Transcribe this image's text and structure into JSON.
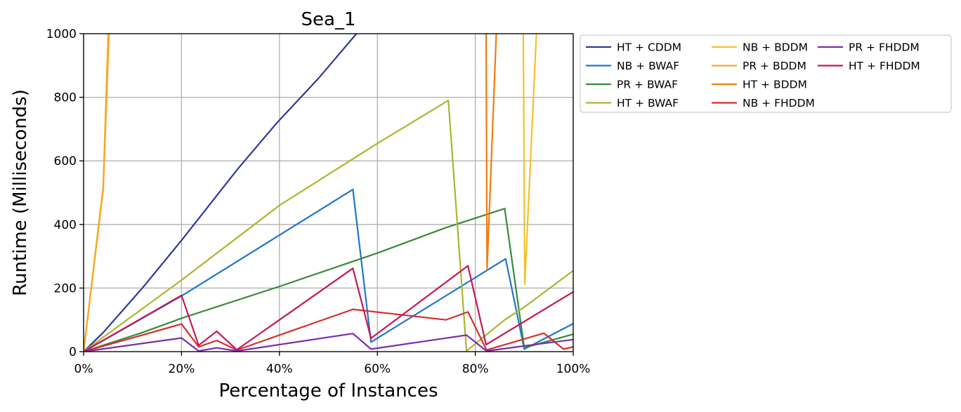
{
  "chart_data": {
    "type": "line",
    "title": "Sea_1",
    "xlabel": "Percentage of Instances",
    "ylabel": "Runtime (Milliseconds)",
    "xlim": [
      0,
      100
    ],
    "ylim": [
      0,
      1000
    ],
    "x_ticks": [
      "0%",
      "20%",
      "40%",
      "60%",
      "80%",
      "100%"
    ],
    "y_ticks": [
      "0",
      "200",
      "400",
      "600",
      "800",
      "1000"
    ],
    "grid": true,
    "legend_position": "outside-top-right",
    "legend_columns": 3,
    "series": [
      {
        "name": "HT + CDDM",
        "color": "#2b3a98",
        "points": [
          [
            0,
            0
          ],
          [
            4,
            60
          ],
          [
            8,
            130
          ],
          [
            12,
            200
          ],
          [
            20,
            350
          ],
          [
            31.5,
            575
          ],
          [
            39.5,
            720
          ],
          [
            48,
            860
          ],
          [
            56,
            1005
          ]
        ]
      },
      {
        "name": "NB + BWAF",
        "color": "#1f77c9",
        "points": [
          [
            0,
            0
          ],
          [
            20,
            175
          ],
          [
            55,
            510
          ],
          [
            58.7,
            30
          ],
          [
            86.2,
            292
          ],
          [
            90,
            8
          ],
          [
            100,
            88
          ]
        ]
      },
      {
        "name": "PR + BWAF",
        "color": "#3a8a3a",
        "points": [
          [
            0,
            0
          ],
          [
            12,
            60
          ],
          [
            20,
            105
          ],
          [
            40,
            205
          ],
          [
            60,
            310
          ],
          [
            74,
            390
          ],
          [
            78,
            410
          ],
          [
            86,
            450
          ],
          [
            90,
            12
          ],
          [
            100,
            55
          ]
        ]
      },
      {
        "name": "HT + BWAF",
        "color": "#adb52e",
        "points": [
          [
            0,
            0
          ],
          [
            20,
            225
          ],
          [
            40,
            460
          ],
          [
            60,
            655
          ],
          [
            74.5,
            790
          ],
          [
            78.2,
            2
          ],
          [
            86,
            100
          ],
          [
            90,
            140
          ],
          [
            100,
            255
          ]
        ]
      },
      {
        "name": "NB + BDDM",
        "color": "#f5c02a",
        "points": [
          [
            0,
            0
          ],
          [
            4,
            520
          ],
          [
            5,
            1005
          ],
          [
            89.8,
            1005
          ],
          [
            90.1,
            212
          ],
          [
            92.5,
            1005
          ]
        ]
      },
      {
        "name": "PR + BDDM",
        "color": "#f5a623",
        "points": [
          [
            0,
            0
          ],
          [
            4,
            510
          ],
          [
            5.2,
            1005
          ]
        ]
      },
      {
        "name": "HT + BDDM",
        "color": "#ef7d0f",
        "points": [
          [
            82.2,
            1005
          ],
          [
            82.4,
            258
          ],
          [
            84.3,
            1005
          ]
        ]
      },
      {
        "name": "NB + FHDDM",
        "color": "#d62f2f",
        "points": [
          [
            0,
            0
          ],
          [
            20,
            87
          ],
          [
            23.5,
            15
          ],
          [
            27.2,
            35
          ],
          [
            31.3,
            5
          ],
          [
            55,
            133
          ],
          [
            74,
            100
          ],
          [
            78.5,
            125
          ],
          [
            82.3,
            5
          ],
          [
            94,
            58
          ],
          [
            98,
            8
          ],
          [
            100,
            15
          ]
        ]
      },
      {
        "name": "PR + FHDDM",
        "color": "#7b2da8",
        "points": [
          [
            0,
            0
          ],
          [
            20,
            43
          ],
          [
            23.5,
            2
          ],
          [
            27.2,
            12
          ],
          [
            31.3,
            2
          ],
          [
            55,
            57
          ],
          [
            58.7,
            8
          ],
          [
            78.2,
            52
          ],
          [
            82.3,
            2
          ],
          [
            90,
            18
          ],
          [
            100,
            38
          ]
        ]
      },
      {
        "name": "HT + FHDDM",
        "color": "#c4185a",
        "points": [
          [
            0,
            0
          ],
          [
            20,
            177
          ],
          [
            23.5,
            20
          ],
          [
            27.2,
            64
          ],
          [
            31.3,
            6
          ],
          [
            55,
            262
          ],
          [
            58.7,
            42
          ],
          [
            78.5,
            270
          ],
          [
            82.2,
            22
          ],
          [
            100,
            188
          ]
        ]
      }
    ]
  }
}
